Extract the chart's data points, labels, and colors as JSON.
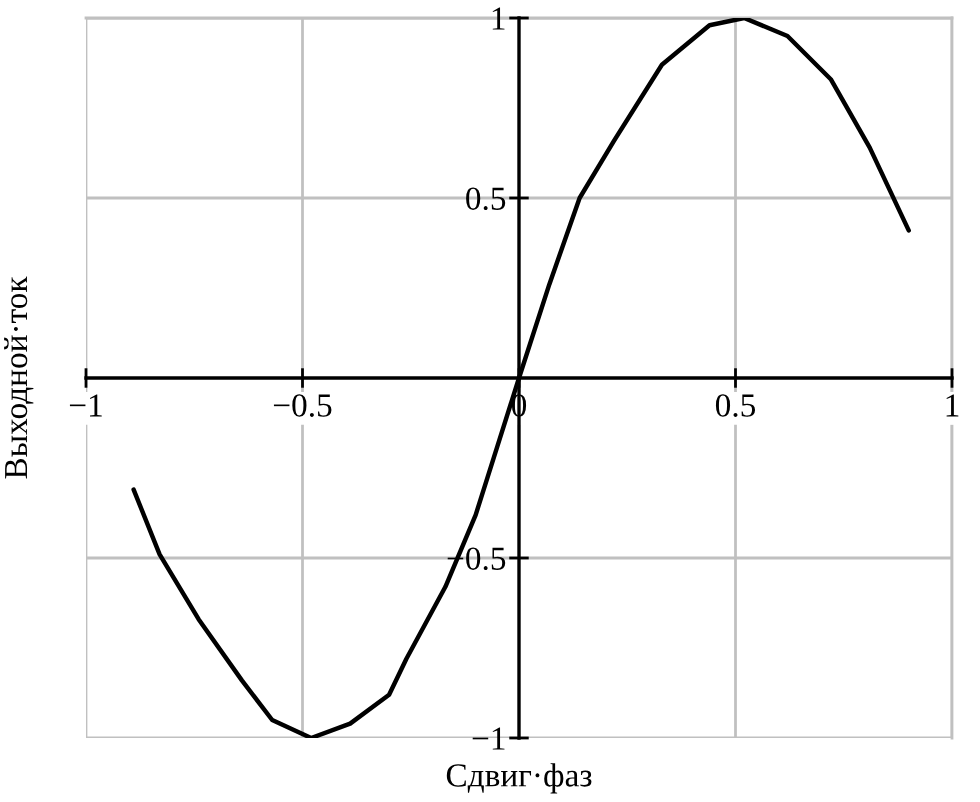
{
  "chart_data": {
    "type": "line",
    "xlabel": "Сдвиг·фаз",
    "ylabel": "Выходной·ток",
    "x": [
      -0.89,
      -0.83,
      -0.74,
      -0.64,
      -0.57,
      -0.48,
      -0.39,
      -0.3,
      -0.26,
      -0.17,
      -0.1,
      -0.05,
      0,
      0.07,
      0.14,
      0.22,
      0.33,
      0.44,
      0.52,
      0.62,
      0.72,
      0.81,
      0.9
    ],
    "series": [
      {
        "color": "#000000",
        "values": [
          -0.31,
          -0.49,
          -0.67,
          -0.84,
          -0.95,
          -1.0,
          -0.96,
          -0.88,
          -0.78,
          -0.58,
          -0.38,
          -0.19,
          0,
          0.26,
          0.5,
          0.66,
          0.87,
          0.98,
          1.0,
          0.95,
          0.83,
          0.64,
          0.41
        ]
      }
    ],
    "xlim": [
      -1,
      1
    ],
    "ylim": [
      -1,
      1
    ],
    "xticks": [
      {
        "value": -1,
        "label": "−1"
      },
      {
        "value": -0.5,
        "label": "−0.5"
      },
      0,
      0.5,
      1
    ],
    "yticks": [
      {
        "value": -1,
        "label": "−1"
      },
      {
        "value": -0.5,
        "label": "−0.5"
      },
      0.5,
      1
    ],
    "grid": true
  }
}
